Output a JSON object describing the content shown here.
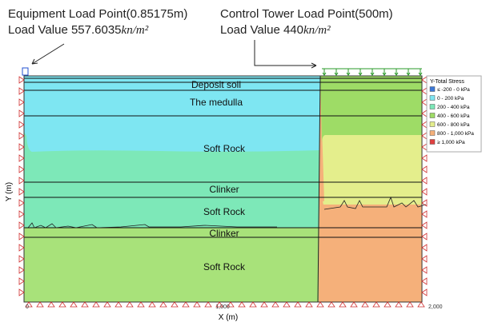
{
  "annotations": [
    {
      "line1": "Equipment Load Point(0.85175m)",
      "line2": "Load Value 557.6035",
      "unit": "kn/m²"
    },
    {
      "line1": "Control Tower Load Point(500m)",
      "line2": "Load Value 440",
      "unit": "kn/m²"
    }
  ],
  "layers": [
    "Deposit soil",
    "The medulla",
    "Soft Rock",
    "Clinker",
    "Soft Rock",
    "Clinker",
    "Soft Rock"
  ],
  "legend": {
    "title": "Y-Total Stress",
    "items": [
      {
        "label": "≤ -200 - 0 kPa",
        "color": "#3c78d8"
      },
      {
        "label": "0 - 200 kPa",
        "color": "#7ee6f2"
      },
      {
        "label": "200 - 400 kPa",
        "color": "#7de8b8"
      },
      {
        "label": "400 - 600 kPa",
        "color": "#9edc66"
      },
      {
        "label": "600 - 800 kPa",
        "color": "#e4ee8c"
      },
      {
        "label": "800 - 1,000 kPa",
        "color": "#f5b07a"
      },
      {
        "label": "≥ 1,000 kPa",
        "color": "#e04040"
      }
    ]
  },
  "axes": {
    "x_label": "X (m)",
    "y_label": "Y (m)",
    "x_ticks": [
      "0",
      "1,000",
      "2,000"
    ]
  }
}
